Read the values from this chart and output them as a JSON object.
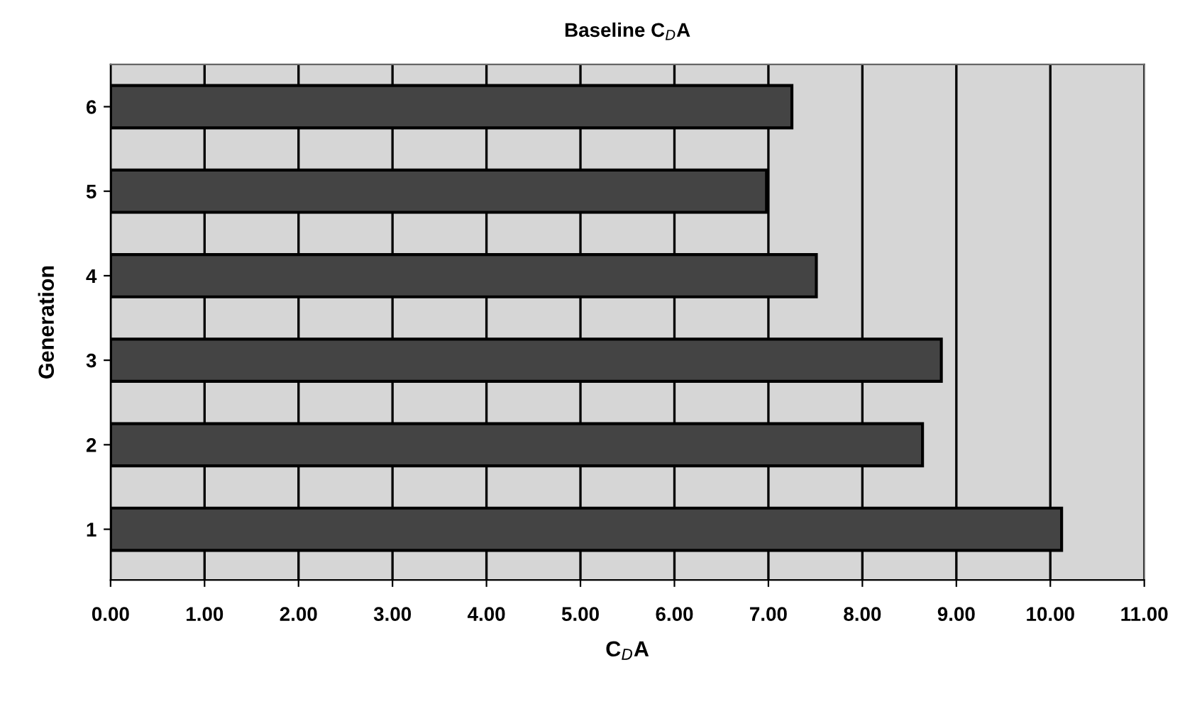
{
  "chart_data": {
    "type": "bar",
    "orientation": "horizontal",
    "title": "Baseline C$_{D}$A",
    "xlabel": "C$_{D}$A",
    "ylabel": "Generation",
    "categories": [
      "6",
      "5",
      "4",
      "3",
      "2",
      "1"
    ],
    "values": [
      7.25,
      6.98,
      7.51,
      8.84,
      8.64,
      10.12
    ],
    "color": "#444444",
    "xlim": [
      0,
      11
    ],
    "xticks": [
      {
        "value": 0,
        "label": "0.00"
      },
      {
        "value": 1,
        "label": "1.00"
      },
      {
        "value": 2,
        "label": "2.00"
      },
      {
        "value": 3,
        "label": "3.00"
      },
      {
        "value": 4,
        "label": "4.00"
      },
      {
        "value": 5,
        "label": "5.00"
      },
      {
        "value": 6,
        "label": "6.00"
      },
      {
        "value": 7,
        "label": "7.00"
      },
      {
        "value": 8,
        "label": "8.00"
      },
      {
        "value": 9,
        "label": "9.00"
      },
      {
        "value": 10,
        "label": "10.00"
      },
      {
        "value": 11,
        "label": "11.00"
      }
    ],
    "grid": "x",
    "legend": false
  }
}
